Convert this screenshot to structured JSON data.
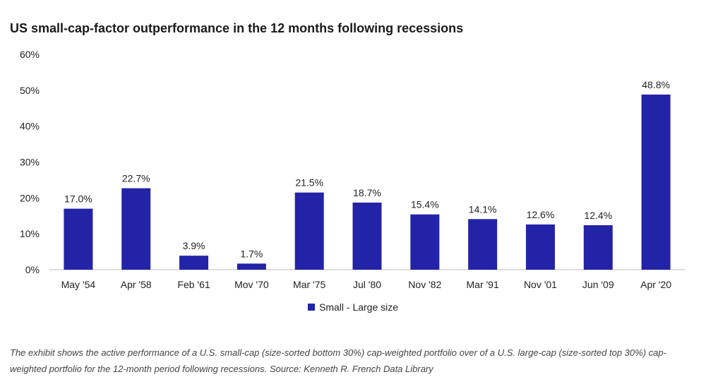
{
  "chart_data": {
    "type": "bar",
    "title": "US small-cap-factor outperformance in the 12 months following recessions",
    "xlabel": "",
    "ylabel": "",
    "categories": [
      "May '54",
      "Apr '58",
      "Feb '61",
      "Mov '70",
      "Mar '75",
      "Jul '80",
      "Nov '82",
      "Mar '91",
      "Nov '01",
      "Jun '09",
      "Apr '20"
    ],
    "series": [
      {
        "name": "Small - Large size",
        "values": [
          17.0,
          22.7,
          3.9,
          1.7,
          21.5,
          18.7,
          15.4,
          14.1,
          12.6,
          12.4,
          48.8
        ],
        "color": "#2323a8"
      }
    ],
    "data_labels": [
      "17.0%",
      "22.7%",
      "3.9%",
      "1.7%",
      "21.5%",
      "18.7%",
      "15.4%",
      "14.1%",
      "12.6%",
      "12.4%",
      "48.8%"
    ],
    "ylim": [
      0,
      60
    ],
    "yticks": [
      0,
      10,
      20,
      30,
      40,
      50,
      60
    ],
    "ytick_labels": [
      "0%",
      "10%",
      "20%",
      "30%",
      "40%",
      "50%",
      "60%"
    ],
    "grid": false,
    "legend_position": "bottom-center"
  },
  "legend": {
    "label": "Small - Large size"
  },
  "note": "The exhibit shows the active performance of a U.S. small-cap (size-sorted bottom 30%) cap-weighted portfolio over of a U.S. large-cap (size-sorted top 30%) cap-weighted portfolio for the 12-month period following recessions. Source: Kenneth R. French Data Library"
}
